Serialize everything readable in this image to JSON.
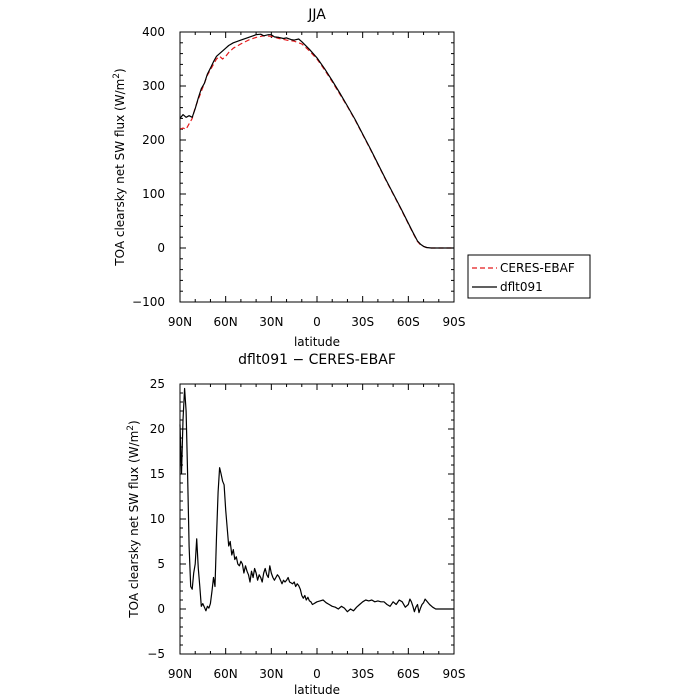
{
  "chart_data": [
    {
      "type": "line",
      "title": "JJA",
      "xlabel": "latitude",
      "ylabel": "TOA clearsky net SW flux (W/m",
      "ylabel_sup": "2",
      "ylabel_suffix": ")",
      "xlim": [
        90,
        -90
      ],
      "ylim": [
        -100,
        400
      ],
      "xticks": [
        90,
        60,
        30,
        0,
        -30,
        -60,
        -90
      ],
      "xtick_labels": [
        "90N",
        "60N",
        "30N",
        "0",
        "30S",
        "60S",
        "90S"
      ],
      "yticks": [
        -100,
        0,
        100,
        200,
        300,
        400
      ],
      "ytick_labels": [
        "−100",
        "0",
        "100",
        "200",
        "300",
        "400"
      ],
      "legend": "right",
      "series": [
        {
          "name": "CERES-EBAF",
          "color": "#e41a1c",
          "dash": "dashed",
          "x": [
            90,
            88,
            86,
            84,
            82,
            80,
            78,
            76,
            74,
            72,
            70,
            68,
            66,
            64,
            62,
            60,
            58,
            55,
            50,
            45,
            40,
            35,
            30,
            25,
            20,
            15,
            10,
            5,
            0,
            -5,
            -10,
            -15,
            -20,
            -25,
            -30,
            -35,
            -40,
            -45,
            -50,
            -55,
            -60,
            -63,
            -66,
            -68,
            -70,
            -72,
            -75,
            -78,
            -80,
            -85,
            -90
          ],
          "y": [
            220,
            222,
            220,
            230,
            240,
            260,
            275,
            290,
            305,
            320,
            330,
            340,
            350,
            355,
            350,
            355,
            362,
            370,
            378,
            385,
            390,
            393,
            392,
            388,
            385,
            383,
            378,
            365,
            350,
            330,
            308,
            285,
            262,
            237,
            210,
            183,
            155,
            127,
            100,
            73,
            45,
            28,
            12,
            6,
            3,
            1,
            0,
            0,
            0,
            0,
            0
          ]
        },
        {
          "name": "dflt091",
          "color": "#000000",
          "dash": "solid",
          "x": [
            90,
            88,
            86,
            84,
            82,
            80,
            78,
            76,
            74,
            72,
            70,
            68,
            66,
            64,
            62,
            60,
            58,
            55,
            50,
            45,
            40,
            37,
            35,
            32,
            30,
            28,
            25,
            22,
            20,
            17,
            15,
            12,
            10,
            5,
            0,
            -5,
            -10,
            -15,
            -20,
            -25,
            -30,
            -35,
            -40,
            -45,
            -50,
            -55,
            -60,
            -63,
            -66,
            -68,
            -70,
            -72,
            -75,
            -78,
            -80,
            -85,
            -90
          ],
          "y": [
            240,
            247,
            242,
            245,
            242,
            258,
            278,
            295,
            305,
            322,
            333,
            345,
            355,
            360,
            365,
            370,
            375,
            380,
            385,
            390,
            395,
            396,
            393,
            395,
            395,
            391,
            390,
            388,
            389,
            386,
            385,
            387,
            382,
            368,
            352,
            332,
            310,
            287,
            263,
            238,
            211,
            184,
            156,
            128,
            101,
            74,
            46,
            29,
            13,
            7,
            3,
            1,
            0,
            0,
            0,
            0,
            0
          ]
        }
      ]
    },
    {
      "type": "line",
      "title": "dflt091 − CERES-EBAF",
      "xlabel": "latitude",
      "ylabel": "TOA clearsky net SW flux (W/m",
      "ylabel_sup": "2",
      "ylabel_suffix": ")",
      "xlim": [
        90,
        -90
      ],
      "ylim": [
        -5,
        25
      ],
      "xticks": [
        90,
        60,
        30,
        0,
        -30,
        -60,
        -90
      ],
      "xtick_labels": [
        "90N",
        "60N",
        "30N",
        "0",
        "30S",
        "60S",
        "90S"
      ],
      "yticks": [
        -5,
        0,
        5,
        10,
        15,
        20,
        25
      ],
      "ytick_labels": [
        "−5",
        "0",
        "5",
        "10",
        "15",
        "20",
        "25"
      ],
      "series": [
        {
          "color": "#000000",
          "dash": "solid",
          "x": [
            90,
            89,
            88,
            87,
            86,
            85,
            84,
            83,
            82,
            81,
            80,
            79,
            78,
            77,
            76,
            75,
            74,
            73,
            72,
            71,
            70,
            69,
            68,
            67,
            66,
            65,
            64,
            63,
            62,
            61,
            60,
            59,
            58,
            57,
            56,
            55,
            54,
            53,
            52,
            51,
            50,
            49,
            48,
            47,
            46,
            45,
            44,
            43,
            42,
            41,
            40,
            39,
            38,
            37,
            36,
            35,
            34,
            33,
            32,
            31,
            30,
            29,
            28,
            27,
            26,
            25,
            24,
            23,
            22,
            21,
            20,
            19,
            18,
            17,
            16,
            15,
            14,
            13,
            12,
            11,
            10,
            9,
            8,
            7,
            6,
            5,
            4,
            3,
            2,
            1,
            0,
            -2,
            -4,
            -6,
            -8,
            -10,
            -12,
            -14,
            -16,
            -18,
            -20,
            -22,
            -24,
            -26,
            -28,
            -30,
            -32,
            -34,
            -36,
            -38,
            -40,
            -42,
            -44,
            -46,
            -48,
            -50,
            -52,
            -54,
            -56,
            -58,
            -60,
            -61,
            -62,
            -63,
            -64,
            -65,
            -66,
            -67,
            -68,
            -69,
            -70,
            -71,
            -72,
            -74,
            -76,
            -78,
            -80,
            -82,
            -84,
            -86,
            -88,
            -90
          ],
          "y": [
            20.5,
            15,
            21,
            24.5,
            22,
            15,
            7,
            2.5,
            2.2,
            4,
            5,
            7.8,
            4.5,
            2.5,
            0.3,
            0.6,
            0.2,
            -0.2,
            0.3,
            0.1,
            0.6,
            2,
            3.5,
            2.5,
            8,
            13,
            15.7,
            15,
            14.2,
            13.8,
            11,
            9,
            7,
            7.5,
            6,
            6.6,
            5.5,
            5.8,
            5,
            4.8,
            5.3,
            5,
            4,
            4.8,
            4.2,
            3.8,
            3,
            4.2,
            3.5,
            4.5,
            4,
            3.2,
            3.8,
            3.5,
            3,
            4,
            4.5,
            3.8,
            3.5,
            4.8,
            4,
            3.5,
            3.2,
            3.5,
            3.8,
            3.6,
            3.2,
            2.8,
            3.2,
            3.0,
            3.2,
            3.5,
            3.0,
            2.9,
            2.8,
            3.0,
            2.5,
            2.8,
            2.6,
            2.2,
            1.5,
            1.2,
            1.5,
            1.0,
            1.3,
            0.9,
            0.8,
            0.5,
            0.6,
            0.7,
            0.8,
            0.9,
            1.0,
            0.7,
            0.5,
            0.3,
            0.2,
            0,
            0.3,
            0.1,
            -0.3,
            0,
            -0.2,
            0.2,
            0.5,
            0.8,
            1.0,
            0.9,
            1.0,
            0.8,
            0.9,
            0.8,
            0.8,
            0.5,
            0.3,
            0.8,
            0.5,
            1.0,
            0.8,
            0.2,
            0.5,
            1.1,
            0.8,
            0.3,
            -0.3,
            0.2,
            0.5,
            -0.4,
            0.1,
            0.5,
            0.7,
            1.1,
            0.9,
            0.5,
            0.2,
            0,
            0,
            0,
            0,
            0,
            0,
            0
          ]
        }
      ]
    }
  ]
}
